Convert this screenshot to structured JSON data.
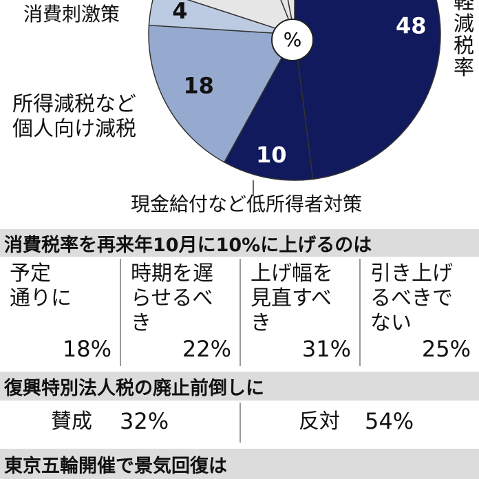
{
  "chart_data": {
    "type": "pie",
    "categories": [
      "軽減税率",
      "現金給付など低所得者対策",
      "所得減税など\n個人向け減税",
      "消費刺激策",
      null,
      null,
      null
    ],
    "values": [
      48,
      10,
      18,
      4,
      14,
      3,
      3
    ],
    "colors": [
      "#111a5c",
      "#111a5c",
      "#95aace",
      "#bccbe2",
      "#e6e6e6",
      "#e6e6e6",
      "#e6e6e6"
    ],
    "center_label": "%"
  },
  "sections": [
    {
      "title": "消費税率を再来年10月に10%に上げるのは",
      "items": [
        {
          "label": "予定\n通りに",
          "value": "18%"
        },
        {
          "label": "時期を遅\nらせるべ\nき",
          "value": "22%"
        },
        {
          "label": "上げ幅を\n見直すべ\nき",
          "value": "31%"
        },
        {
          "label": "引き上げ\nるべきで\nない",
          "value": "25%"
        }
      ]
    },
    {
      "title": "復興特別法人税の廃止前倒しに",
      "items": [
        {
          "label": "賛成",
          "value": "32%"
        },
        {
          "label": "反対",
          "value": "54%"
        }
      ]
    },
    {
      "title": "東京五輪開催で景気回復は",
      "items": []
    }
  ]
}
